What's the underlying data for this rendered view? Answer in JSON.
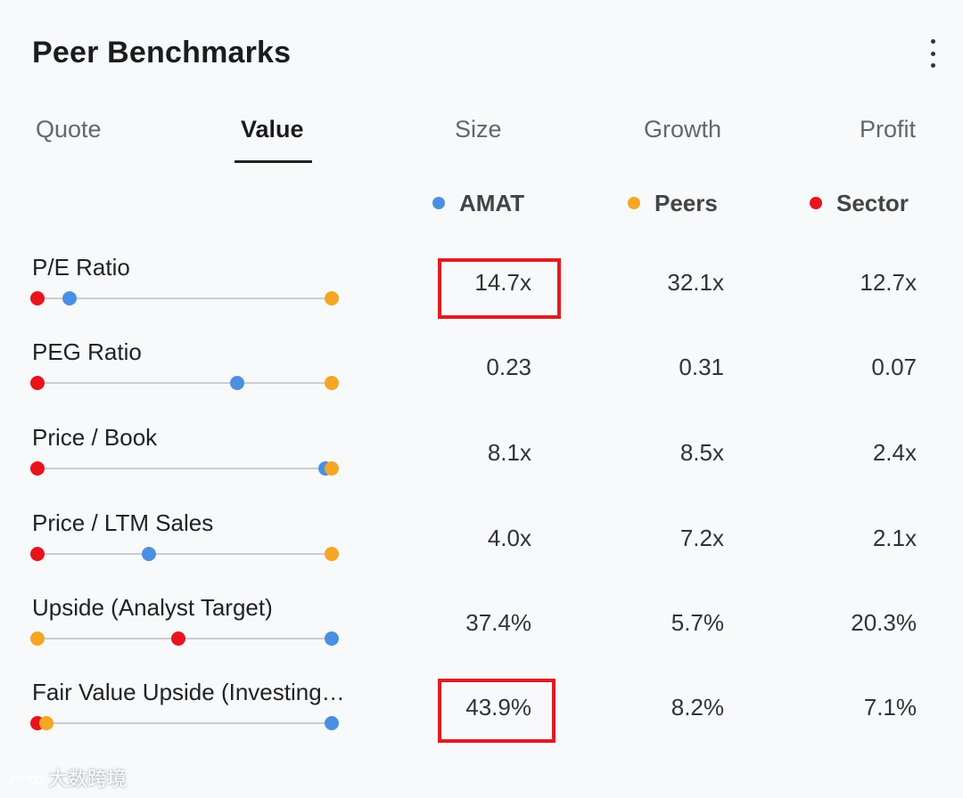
{
  "title": "Peer Benchmarks",
  "menu_icon": "more-vertical-icon",
  "tabs": [
    {
      "label": "Quote"
    },
    {
      "label": "Value"
    },
    {
      "label": "Size"
    },
    {
      "label": "Growth"
    },
    {
      "label": "Profit"
    }
  ],
  "active_tab": "Value",
  "legend": [
    {
      "label": "AMAT",
      "color": "#4a90e2"
    },
    {
      "label": "Peers",
      "color": "#f5a623"
    },
    {
      "label": "Sector",
      "color": "#e8141c"
    }
  ],
  "colors": {
    "amat": "#4a90e2",
    "peers": "#f5a623",
    "sector": "#e8141c",
    "highlight": "#e11b22"
  },
  "rows": [
    {
      "label": "P/E Ratio",
      "amat": "14.7x",
      "peers": "32.1x",
      "sector": "12.7x",
      "highlighted": true,
      "slider": {
        "amat": 0.11,
        "peers": 1.0,
        "sector": 0.0
      }
    },
    {
      "label": "PEG Ratio",
      "amat": "0.23",
      "peers": "0.31",
      "sector": "0.07",
      "highlighted": false,
      "slider": {
        "amat": 0.68,
        "peers": 1.0,
        "sector": 0.0
      }
    },
    {
      "label": "Price / Book",
      "amat": "8.1x",
      "peers": "8.5x",
      "sector": "2.4x",
      "highlighted": false,
      "slider": {
        "amat": 0.98,
        "peers": 1.0,
        "sector": 0.0
      }
    },
    {
      "label": "Price / LTM Sales",
      "amat": "4.0x",
      "peers": "7.2x",
      "sector": "2.1x",
      "highlighted": false,
      "slider": {
        "amat": 0.38,
        "peers": 1.0,
        "sector": 0.0
      }
    },
    {
      "label": "Upside (Analyst Target)",
      "amat": "37.4%",
      "peers": "5.7%",
      "sector": "20.3%",
      "highlighted": false,
      "slider": {
        "amat": 1.0,
        "peers": 0.0,
        "sector": 0.48
      }
    },
    {
      "label": "Fair Value Upside (Investing…",
      "amat": "43.9%",
      "peers": "8.2%",
      "sector": "7.1%",
      "highlighted": true,
      "slider": {
        "amat": 1.0,
        "peers": 0.03,
        "sector": 0.0
      }
    }
  ],
  "watermark": {
    "text": "大数跨境",
    "icon": "watermark-logo-icon"
  }
}
